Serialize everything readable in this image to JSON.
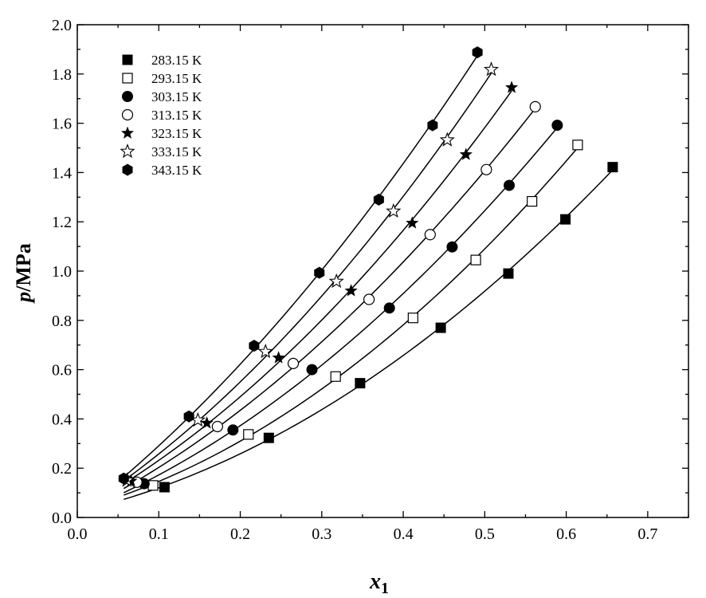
{
  "chart_data": {
    "type": "scatter",
    "xlabel": "x",
    "xlabel_sub": "1",
    "ylabel_italic": "p",
    "ylabel_rest": "/MPa",
    "xlim": [
      0.0,
      0.75
    ],
    "ylim": [
      0.0,
      2.0
    ],
    "xticks": [
      "0.0",
      "0.1",
      "0.2",
      "0.3",
      "0.4",
      "0.5",
      "0.6",
      "0.7"
    ],
    "yticks": [
      "0.0",
      "0.2",
      "0.4",
      "0.6",
      "0.8",
      "1.0",
      "1.2",
      "1.4",
      "1.6",
      "1.8",
      "2.0"
    ],
    "legend_position": "top-left",
    "fit_curves": true,
    "series": [
      {
        "name": "283.15 K",
        "marker": "square-filled",
        "x": [
          0.107,
          0.235,
          0.347,
          0.446,
          0.529,
          0.599,
          0.657
        ],
        "y": [
          0.123,
          0.323,
          0.545,
          0.77,
          0.99,
          1.21,
          1.422
        ],
        "curve_x": [
          0.057,
          0.657
        ]
      },
      {
        "name": "293.15 K",
        "marker": "square-open",
        "x": [
          0.093,
          0.21,
          0.317,
          0.412,
          0.489,
          0.558,
          0.614
        ],
        "y": [
          0.13,
          0.337,
          0.572,
          0.81,
          1.045,
          1.283,
          1.512
        ],
        "curve_x": [
          0.057,
          0.614
        ]
      },
      {
        "name": "303.15 K",
        "marker": "circle-filled",
        "x": [
          0.082,
          0.191,
          0.288,
          0.383,
          0.46,
          0.53,
          0.589
        ],
        "y": [
          0.137,
          0.355,
          0.6,
          0.85,
          1.098,
          1.348,
          1.592
        ],
        "curve_x": [
          0.057,
          0.589
        ]
      },
      {
        "name": "313.15 K",
        "marker": "circle-open",
        "x": [
          0.073,
          0.172,
          0.265,
          0.358,
          0.433,
          0.502,
          0.562
        ],
        "y": [
          0.143,
          0.369,
          0.625,
          0.885,
          1.148,
          1.412,
          1.667
        ],
        "curve_x": [
          0.057,
          0.562
        ]
      },
      {
        "name": "323.15 K",
        "marker": "star-filled",
        "x": [
          0.066,
          0.159,
          0.247,
          0.336,
          0.411,
          0.477,
          0.533
        ],
        "y": [
          0.148,
          0.383,
          0.648,
          0.92,
          1.195,
          1.473,
          1.745
        ],
        "curve_x": [
          0.057,
          0.533
        ]
      },
      {
        "name": "333.15 K",
        "marker": "star-open",
        "x": [
          0.061,
          0.148,
          0.231,
          0.318,
          0.388,
          0.454,
          0.508
        ],
        "y": [
          0.151,
          0.395,
          0.673,
          0.958,
          1.243,
          1.532,
          1.818
        ],
        "curve_x": [
          0.057,
          0.508
        ]
      },
      {
        "name": "343.15 K",
        "marker": "hexagon-filled",
        "x": [
          0.057,
          0.137,
          0.217,
          0.297,
          0.37,
          0.436,
          0.491
        ],
        "y": [
          0.158,
          0.41,
          0.697,
          0.993,
          1.29,
          1.592,
          1.888
        ],
        "curve_x": [
          0.057,
          0.491
        ]
      }
    ]
  }
}
